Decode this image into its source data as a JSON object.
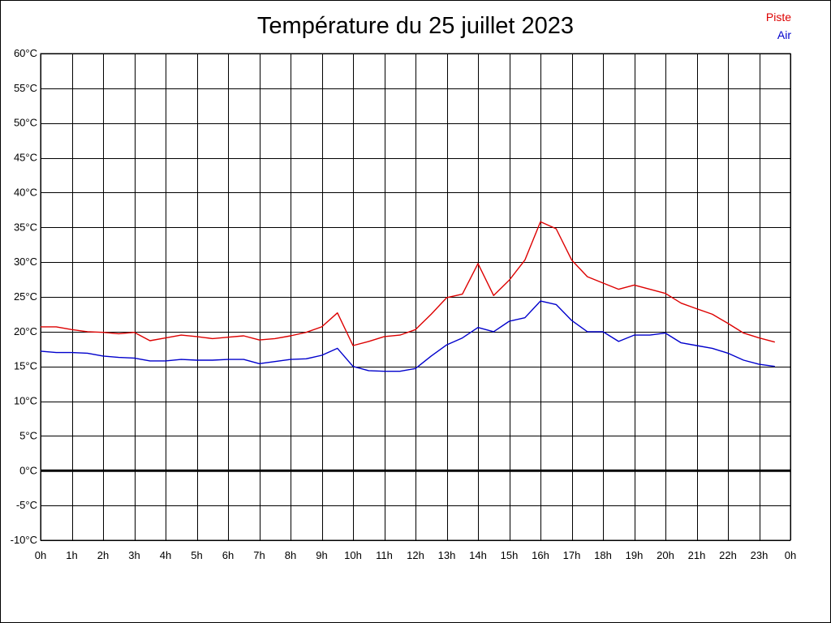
{
  "colors": {
    "piste": "#dd0000",
    "air": "#0000cc",
    "grid": "#000000",
    "zero_line": "#000000"
  },
  "chart_data": {
    "type": "line",
    "title": "Température du 25 juillet 2023",
    "xlabel": "",
    "ylabel": "",
    "ylim": [
      -10,
      60
    ],
    "xlim": [
      0,
      24
    ],
    "grid": true,
    "legend_placement": "top-right",
    "x_tick_labels": [
      "0h",
      "1h",
      "2h",
      "3h",
      "4h",
      "5h",
      "6h",
      "7h",
      "8h",
      "9h",
      "10h",
      "11h",
      "12h",
      "13h",
      "14h",
      "15h",
      "16h",
      "17h",
      "18h",
      "19h",
      "20h",
      "21h",
      "22h",
      "23h",
      "0h"
    ],
    "y_tick_labels": [
      "60°C",
      "55°C",
      "50°C",
      "45°C",
      "40°C",
      "35°C",
      "30°C",
      "25°C",
      "20°C",
      "15°C",
      "10°C",
      "5°C",
      "0°C",
      "-5°C",
      "-10°C"
    ],
    "x": [
      0,
      0.5,
      1,
      1.5,
      2,
      2.5,
      3,
      3.5,
      4,
      4.5,
      5,
      5.5,
      6,
      6.5,
      7,
      7.5,
      8,
      8.5,
      9,
      9.5,
      10,
      10.5,
      11,
      11.5,
      12,
      12.5,
      13,
      13.5,
      14,
      14.5,
      15,
      15.5,
      16,
      16.5,
      17,
      17.5,
      18,
      18.5,
      19,
      19.5,
      20,
      20.5,
      21,
      21.5,
      22,
      22.5,
      23,
      23.5
    ],
    "series": [
      {
        "name": "Piste",
        "color": "#dd0000",
        "values": [
          20.7,
          20.7,
          20.3,
          20.0,
          19.9,
          19.7,
          19.9,
          18.7,
          19.1,
          19.5,
          19.3,
          19.0,
          19.2,
          19.4,
          18.8,
          19.0,
          19.4,
          19.9,
          20.7,
          22.7,
          18.0,
          18.6,
          19.3,
          19.5,
          20.3,
          22.5,
          24.9,
          25.4,
          29.8,
          25.2,
          27.4,
          30.3,
          35.8,
          34.8,
          30.3,
          27.9,
          27.0,
          26.1,
          26.7,
          26.1,
          25.5,
          24.1,
          23.3,
          22.5,
          21.2,
          19.8,
          19.1,
          18.5
        ]
      },
      {
        "name": "Air",
        "color": "#0000cc",
        "values": [
          17.2,
          17.0,
          17.0,
          16.9,
          16.5,
          16.3,
          16.2,
          15.8,
          15.8,
          16.0,
          15.9,
          15.9,
          16.0,
          16.0,
          15.4,
          15.7,
          16.0,
          16.1,
          16.6,
          17.6,
          15.0,
          14.4,
          14.3,
          14.3,
          14.7,
          16.5,
          18.1,
          19.1,
          20.6,
          20.0,
          21.5,
          22.0,
          24.4,
          23.9,
          21.6,
          20.0,
          20.0,
          18.6,
          19.5,
          19.5,
          19.8,
          18.4,
          18.0,
          17.6,
          16.9,
          15.9,
          15.3,
          15.0
        ]
      }
    ]
  }
}
